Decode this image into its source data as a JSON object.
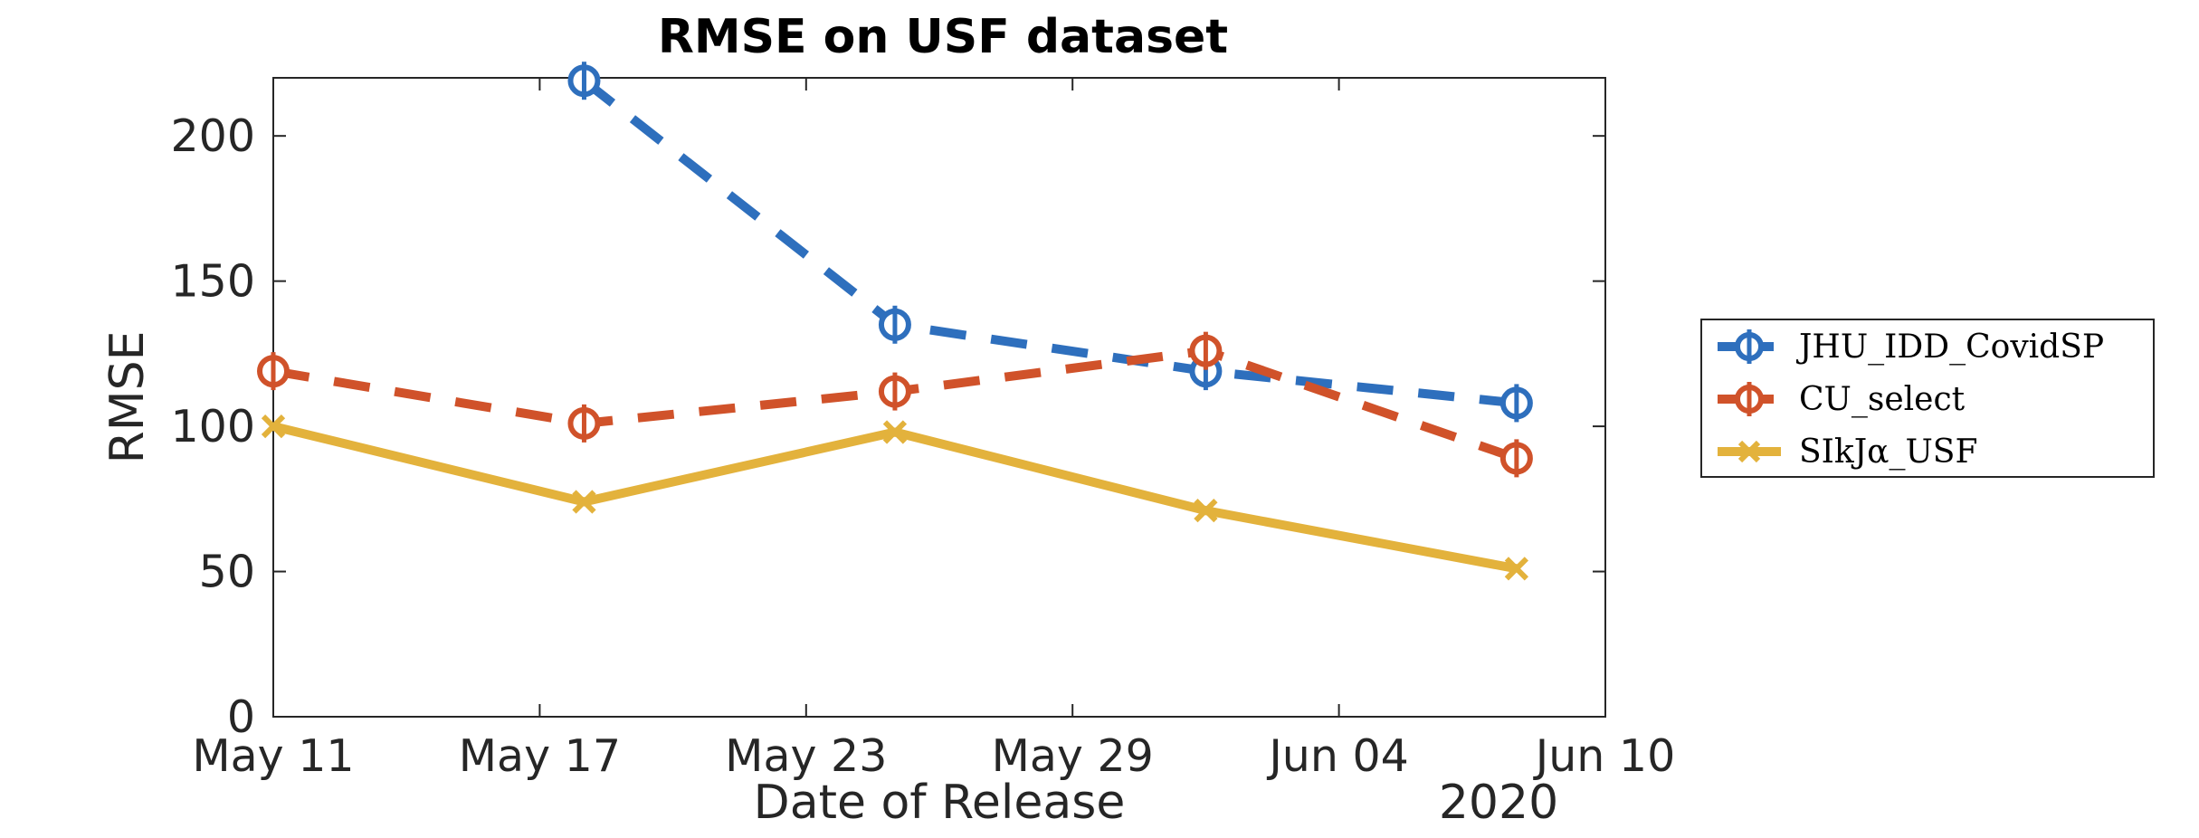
{
  "chart_data": {
    "type": "line",
    "title": "RMSE on USF dataset",
    "xlabel": "Date of Release",
    "ylabel": "RMSE",
    "x_year_label": "2020",
    "x_ticks": [
      "May 11",
      "May 17",
      "May 23",
      "May 29",
      "Jun 04",
      "Jun 10"
    ],
    "x_tick_dates": [
      "2020-05-11",
      "2020-05-17",
      "2020-05-23",
      "2020-05-29",
      "2020-06-04",
      "2020-06-10"
    ],
    "xlim": [
      "2020-05-11",
      "2020-06-10"
    ],
    "y_ticks": [
      "0",
      "50",
      "100",
      "150",
      "200"
    ],
    "ylim": [
      0,
      220
    ],
    "grid": false,
    "legend_position": "outside-right",
    "series": [
      {
        "name": "JHU_IDD_CovidSP",
        "legend_label": "JHU_IDD_CovidSP",
        "color": "#2e6fbd",
        "line_style": "dashed",
        "marker": "circle-plus",
        "x": [
          "2020-05-18",
          "2020-05-25",
          "2020-06-01",
          "2020-06-08"
        ],
        "values": [
          219,
          135,
          119,
          108
        ]
      },
      {
        "name": "CU_select",
        "legend_label": "CU_select",
        "color": "#d0522a",
        "line_style": "dashed",
        "marker": "circle-plus",
        "x": [
          "2020-05-11",
          "2020-05-18",
          "2020-05-25",
          "2020-06-01",
          "2020-06-08"
        ],
        "values": [
          119,
          101,
          112,
          126,
          89
        ]
      },
      {
        "name": "SIkJα_USF",
        "legend_label": "SIkJα_USF",
        "color": "#e3b23c",
        "line_style": "solid",
        "marker": "x",
        "x": [
          "2020-05-11",
          "2020-05-18",
          "2020-05-25",
          "2020-06-01",
          "2020-06-08"
        ],
        "values": [
          100,
          74,
          98,
          71,
          51
        ]
      }
    ]
  }
}
